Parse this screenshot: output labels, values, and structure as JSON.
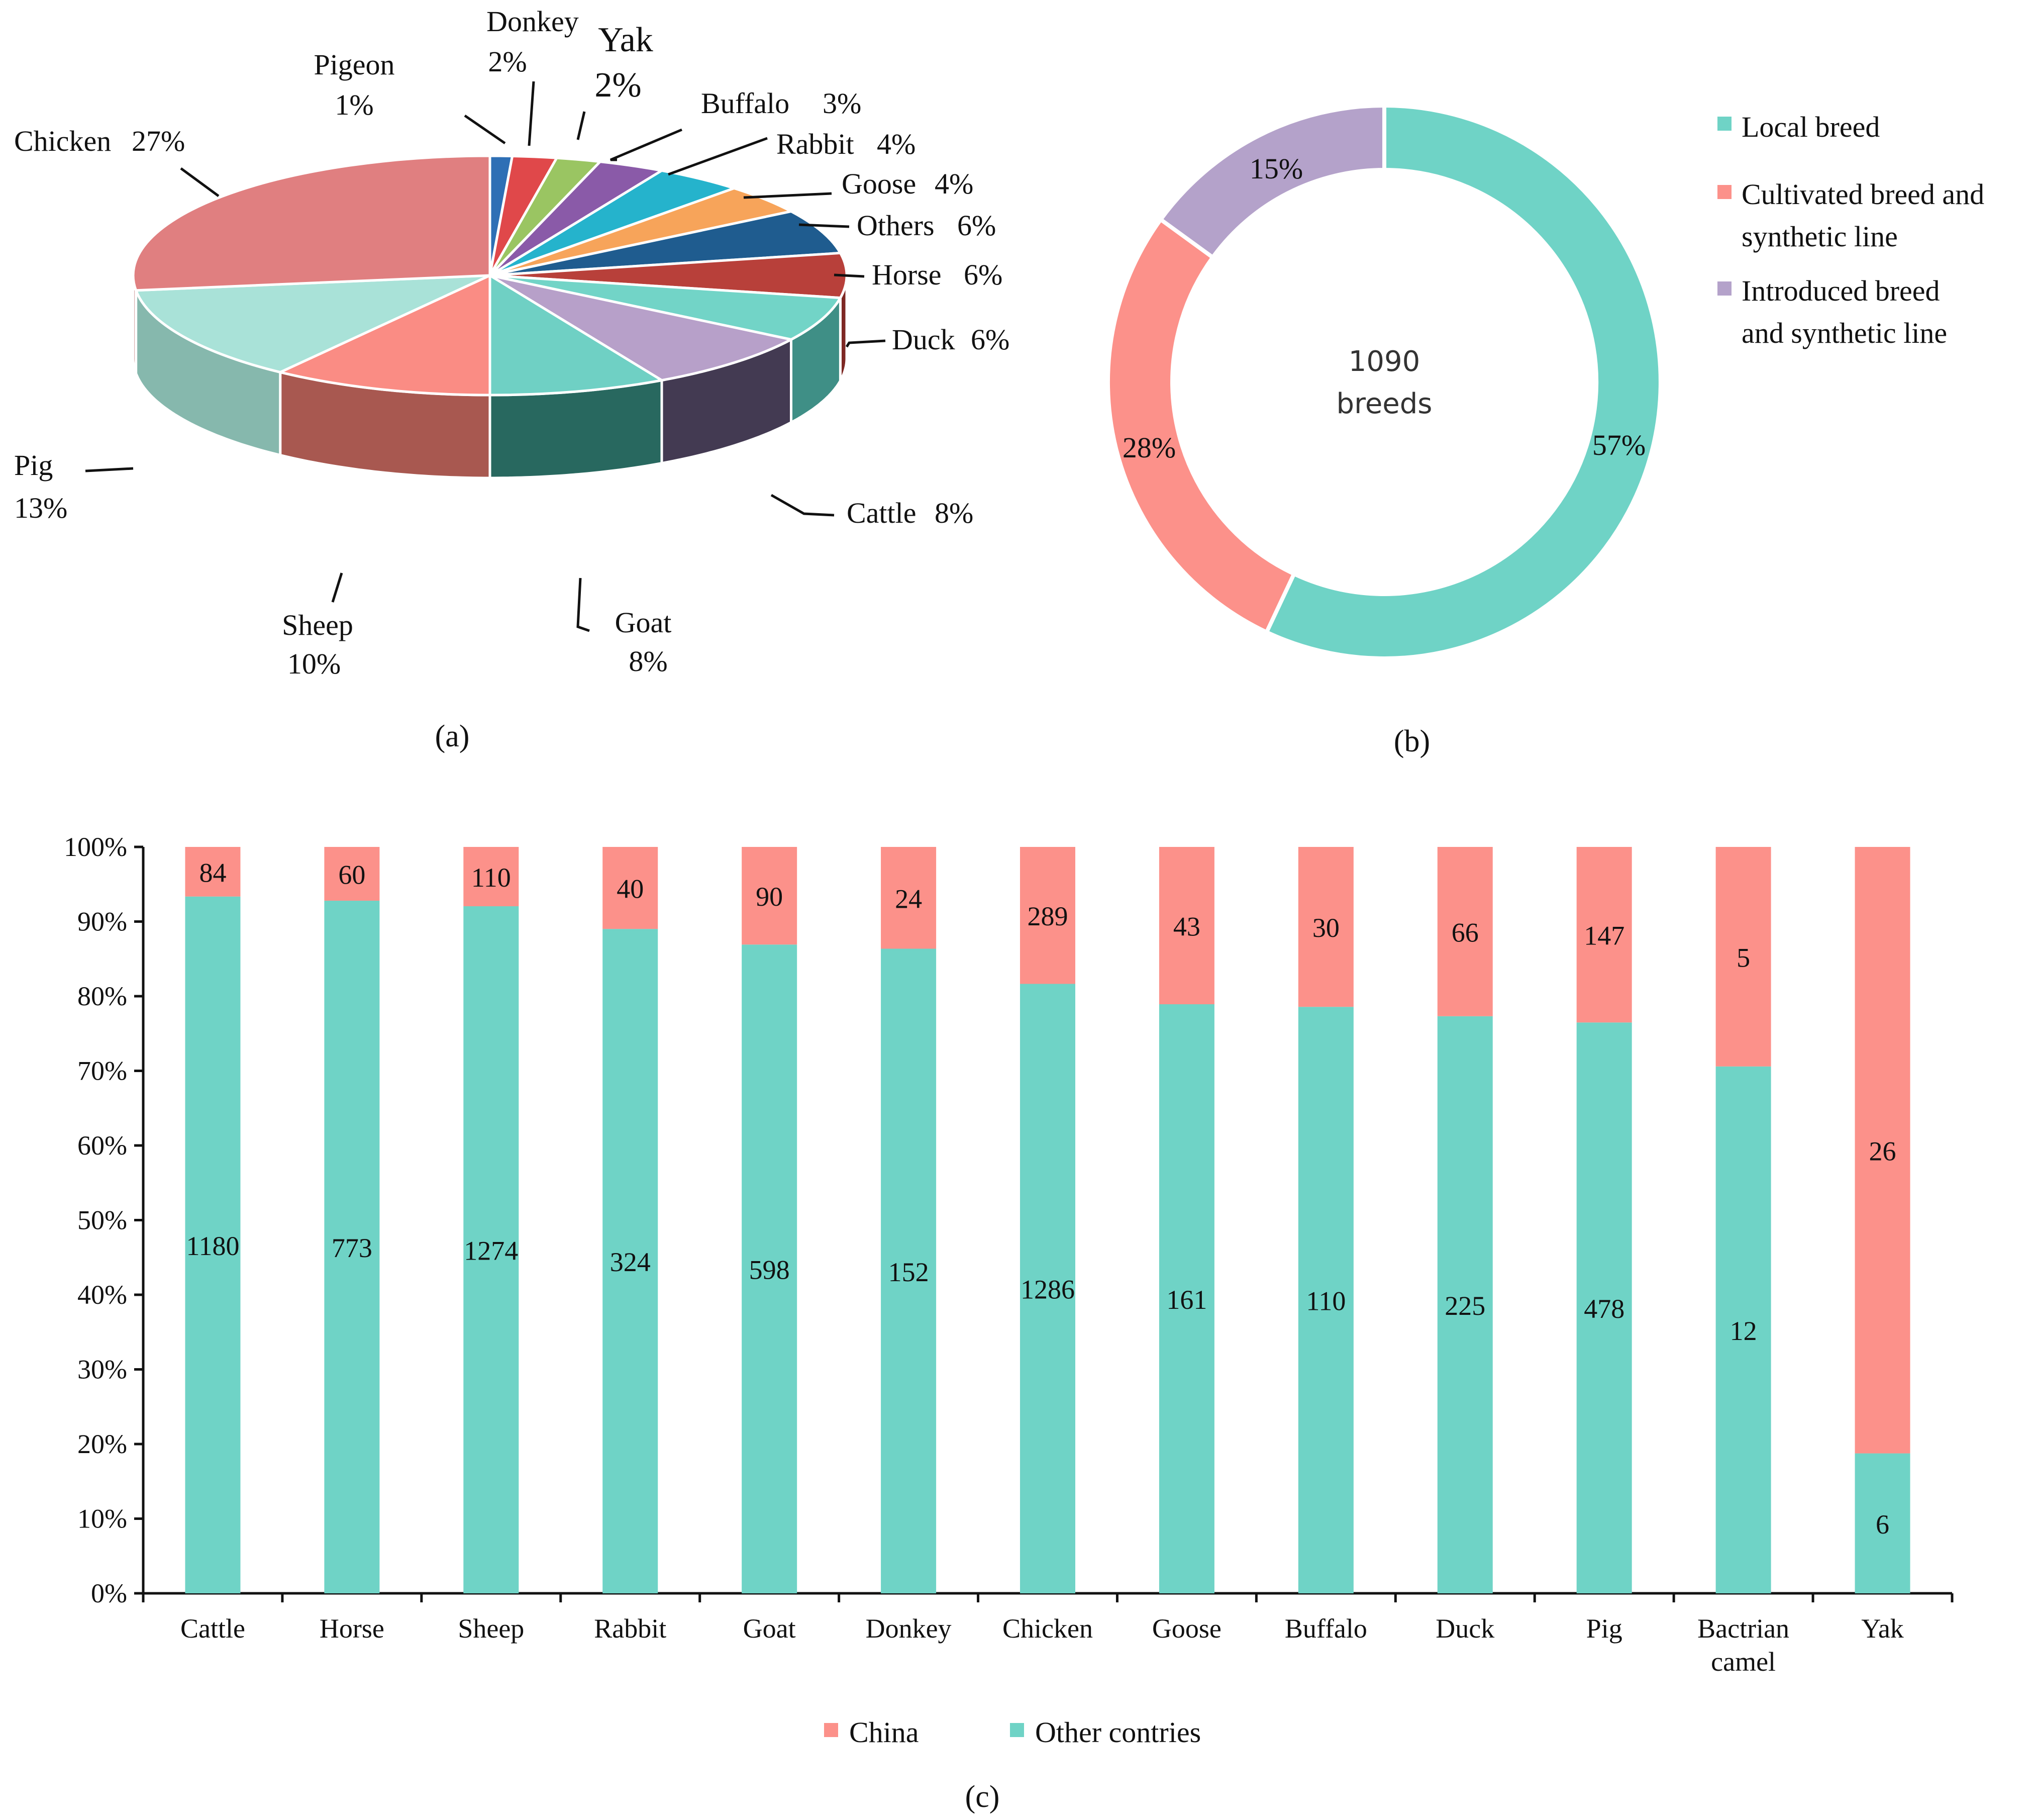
{
  "chart_data": [
    {
      "id": "a",
      "type": "pie",
      "caption": "(a)",
      "slices": [
        {
          "label": "Pigeon",
          "percent_text": "1%",
          "value": 1,
          "color": "#2e6fb5",
          "side": "#1d4c80"
        },
        {
          "label": "Donkey",
          "percent_text": "2%",
          "value": 2,
          "color": "#e0484a",
          "side": "#a83234"
        },
        {
          "label": "Yak",
          "percent_text": "2%",
          "value": 2,
          "color": "#9ac562",
          "side": "#6d9242"
        },
        {
          "label": "Buffalo",
          "percent_text": "3%",
          "value": 3,
          "color": "#8a5aa8",
          "side": "#5f3c77"
        },
        {
          "label": "Rabbit",
          "percent_text": "4%",
          "value": 4,
          "color": "#25b3cc",
          "side": "#177f92"
        },
        {
          "label": "Goose",
          "percent_text": "4%",
          "value": 4,
          "color": "#f7a45a",
          "side": "#c07838"
        },
        {
          "label": "Others",
          "percent_text": "6%",
          "value": 6,
          "color": "#1f5c8f",
          "side": "#123d61"
        },
        {
          "label": "Horse",
          "percent_text": "6%",
          "value": 6,
          "color": "#b8403a",
          "side": "#7e2824"
        },
        {
          "label": "Duck",
          "percent_text": "6%",
          "value": 6,
          "color": "#72d4c7",
          "side": "#3f8f86"
        },
        {
          "label": "Cattle",
          "percent_text": "8%",
          "value": 8,
          "color": "#b7a0c9",
          "side": "#433a52"
        },
        {
          "label": "Goat",
          "percent_text": "8%",
          "value": 8,
          "color": "#6fd0c4",
          "side": "#28685f"
        },
        {
          "label": "Sheep",
          "percent_text": "10%",
          "value": 10,
          "color": "#fa8c84",
          "side": "#a85850"
        },
        {
          "label": "Pig",
          "percent_text": "13%",
          "value": 13,
          "color": "#a9e2d8",
          "side": "#86b8ad"
        },
        {
          "label": "Chicken",
          "percent_text": "27%",
          "value": 27,
          "color": "#e07f80",
          "side": "#b35c5d"
        }
      ]
    },
    {
      "id": "b",
      "type": "pie",
      "subtype": "donut",
      "caption": "(b)",
      "center_number": "1090",
      "center_label": "breeds",
      "slices": [
        {
          "label": "Local breed",
          "value": 57,
          "percent_text": "57%",
          "color": "#6fd3c6"
        },
        {
          "label": "Cultivated breed and synthetic line",
          "value": 28,
          "percent_text": "28%",
          "color": "#fc918a"
        },
        {
          "label": "Introduced breed and synthetic line",
          "value": 15,
          "percent_text": "15%",
          "color": "#b4a2ca"
        }
      ],
      "legend": [
        {
          "line1": "Local breed",
          "line2": "",
          "color": "#6fd3c6"
        },
        {
          "line1": "Cultivated breed and",
          "line2": "synthetic line",
          "color": "#fc918a"
        },
        {
          "line1": "Introduced breed",
          "line2": "and synthetic line",
          "color": "#b4a2ca"
        }
      ]
    },
    {
      "id": "c",
      "type": "bar",
      "stacked": "percent",
      "caption": "(c)",
      "ylim": [
        0,
        100
      ],
      "yticks": [
        "0%",
        "10%",
        "20%",
        "30%",
        "40%",
        "50%",
        "60%",
        "70%",
        "80%",
        "90%",
        "100%"
      ],
      "categories": [
        [
          "Cattle"
        ],
        [
          "Horse"
        ],
        [
          "Sheep"
        ],
        [
          "Rabbit"
        ],
        [
          "Goat"
        ],
        [
          "Donkey"
        ],
        [
          "Chicken"
        ],
        [
          "Goose"
        ],
        [
          "Buffalo"
        ],
        [
          "Duck"
        ],
        [
          "Pig"
        ],
        [
          "Bactrian",
          "camel"
        ],
        [
          "Yak"
        ]
      ],
      "series": [
        {
          "name": "Other contries",
          "color": "#6fd3c6",
          "values": [
            1180,
            773,
            1274,
            324,
            598,
            152,
            1286,
            161,
            110,
            225,
            478,
            12,
            6
          ]
        },
        {
          "name": "China",
          "color": "#fc918a",
          "values": [
            84,
            60,
            110,
            40,
            90,
            24,
            289,
            43,
            30,
            66,
            147,
            5,
            26
          ]
        }
      ],
      "legend": [
        "China",
        "Other contries"
      ]
    }
  ]
}
